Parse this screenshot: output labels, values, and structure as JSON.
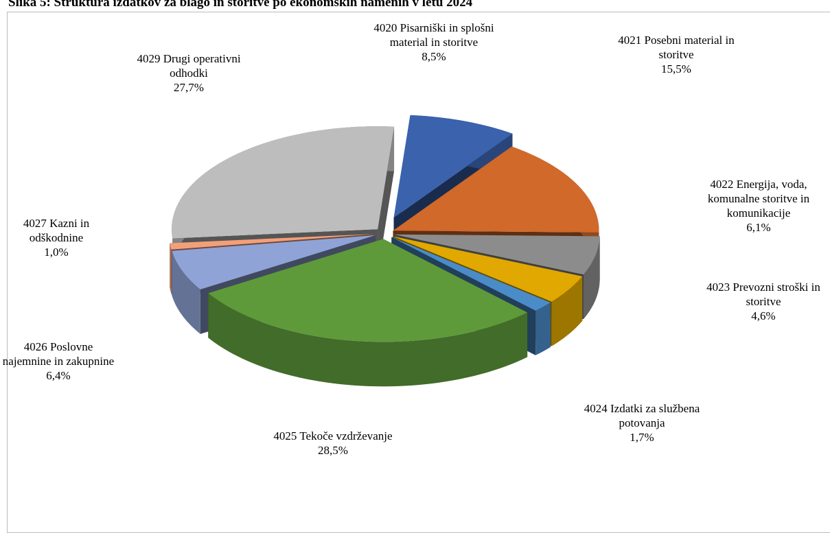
{
  "chart_data": {
    "type": "pie3d",
    "title": "Slika 5: Struktura izdatkov za blago in storitve po ekonomskih namenih v letu 2024",
    "categories": [
      "4020 Pisarniški in splošni material in storitve",
      "4021 Posebni material in storitve",
      "4022 Energija, voda, komunalne storitve in komunikacije",
      "4023 Prevozni stroški in storitve",
      "4024 Izdatki za službena potovanja",
      "4025 Tekoče vzdrževanje",
      "4026 Poslovne najemnine in zakupnine",
      "4027 Kazni in odškodnine",
      "4029 Drugi operativni odhodki"
    ],
    "values": [
      8.5,
      15.5,
      6.1,
      4.6,
      1.7,
      28.5,
      6.4,
      1.0,
      27.7
    ],
    "value_labels": [
      "8,5%",
      "15,5%",
      "6,1%",
      "4,6%",
      "1,7%",
      "28,5%",
      "6,4%",
      "1,0%",
      "27,7%"
    ],
    "colors": [
      "#3a62ad",
      "#d0692a",
      "#8c8c8c",
      "#e0a800",
      "#4a8cc8",
      "#5e9a3a",
      "#8fa3d6",
      "#f2a07b",
      "#bdbdbd"
    ]
  }
}
